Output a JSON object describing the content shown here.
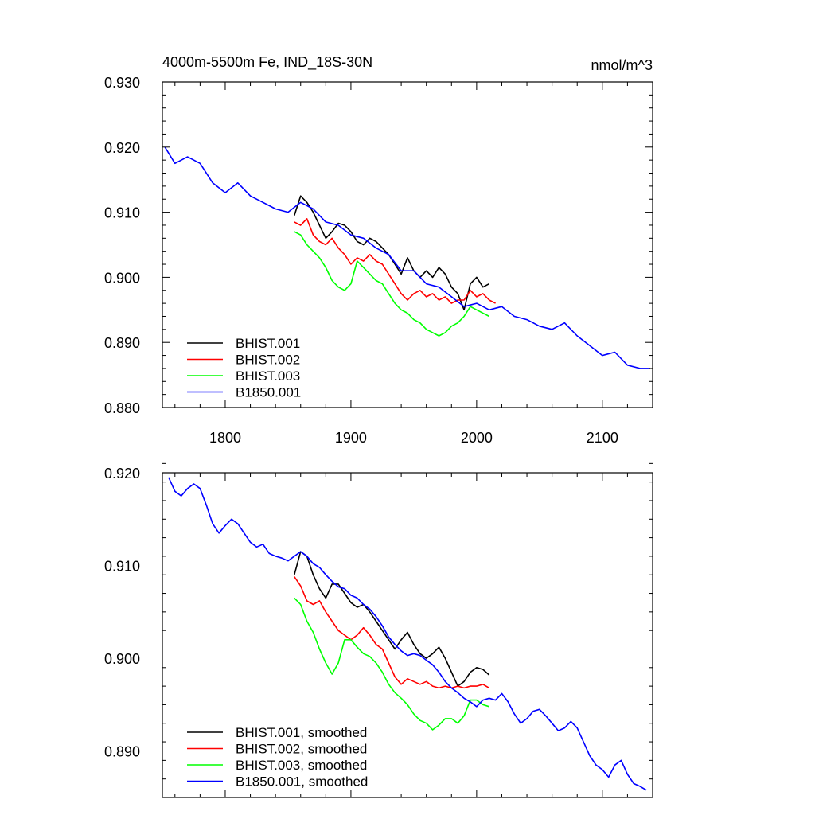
{
  "chart_data": [
    {
      "type": "line",
      "title": "4000m-5500m Fe, IND_18S-30N",
      "units": "nmol/m^3",
      "xlim": [
        1750,
        2140
      ],
      "ylim": [
        0.88,
        0.93
      ],
      "xticks": [
        1800,
        1900,
        2000,
        2100
      ],
      "xtick_labels": [
        "1800",
        "1900",
        "2000",
        "2100"
      ],
      "yticks": [
        0.88,
        0.89,
        0.9,
        0.91,
        0.92,
        0.93
      ],
      "ytick_labels": [
        "0.880",
        "0.890",
        "0.900",
        "0.910",
        "0.920",
        "0.930"
      ],
      "legend_position": "bottom-left",
      "series": [
        {
          "name": "BHIST.001",
          "color": "#000000",
          "x": [
            1855,
            1860,
            1865,
            1870,
            1875,
            1880,
            1885,
            1890,
            1895,
            1900,
            1905,
            1910,
            1915,
            1920,
            1925,
            1930,
            1935,
            1940,
            1945,
            1950,
            1955,
            1960,
            1965,
            1970,
            1975,
            1980,
            1985,
            1990,
            1995,
            2000,
            2005,
            2010
          ],
          "y": [
            0.9095,
            0.9125,
            0.9115,
            0.91,
            0.908,
            0.906,
            0.907,
            0.9083,
            0.908,
            0.907,
            0.9055,
            0.905,
            0.906,
            0.9055,
            0.9045,
            0.9035,
            0.902,
            0.9005,
            0.903,
            0.901,
            0.9,
            0.901,
            0.9,
            0.9015,
            0.9005,
            0.8985,
            0.8975,
            0.895,
            0.899,
            0.9,
            0.8985,
            0.899
          ]
        },
        {
          "name": "BHIST.002",
          "color": "#ff0000",
          "x": [
            1855,
            1860,
            1865,
            1870,
            1875,
            1880,
            1885,
            1890,
            1895,
            1900,
            1905,
            1910,
            1915,
            1920,
            1925,
            1930,
            1935,
            1940,
            1945,
            1950,
            1955,
            1960,
            1965,
            1970,
            1975,
            1980,
            1985,
            1990,
            1995,
            2000,
            2005,
            2010,
            2015
          ],
          "y": [
            0.9085,
            0.908,
            0.909,
            0.9065,
            0.9055,
            0.905,
            0.906,
            0.9045,
            0.9035,
            0.902,
            0.903,
            0.9025,
            0.9035,
            0.9025,
            0.902,
            0.9005,
            0.899,
            0.8975,
            0.8965,
            0.8975,
            0.898,
            0.897,
            0.8975,
            0.8965,
            0.897,
            0.896,
            0.8965,
            0.8965,
            0.898,
            0.897,
            0.8975,
            0.8965,
            0.896
          ]
        },
        {
          "name": "BHIST.003",
          "color": "#00ff00",
          "x": [
            1855,
            1860,
            1865,
            1870,
            1875,
            1880,
            1885,
            1890,
            1895,
            1900,
            1905,
            1910,
            1915,
            1920,
            1925,
            1930,
            1935,
            1940,
            1945,
            1950,
            1955,
            1960,
            1965,
            1970,
            1975,
            1980,
            1985,
            1990,
            1995,
            2000,
            2005,
            2010
          ],
          "y": [
            0.907,
            0.9065,
            0.905,
            0.904,
            0.903,
            0.9015,
            0.8995,
            0.8985,
            0.898,
            0.899,
            0.9025,
            0.9015,
            0.9005,
            0.8995,
            0.899,
            0.8975,
            0.896,
            0.895,
            0.8945,
            0.8935,
            0.893,
            0.892,
            0.8915,
            0.891,
            0.8915,
            0.8925,
            0.893,
            0.894,
            0.8955,
            0.895,
            0.8945,
            0.894
          ]
        },
        {
          "name": "B1850.001",
          "color": "#0000ff",
          "x": [
            1752,
            1760,
            1770,
            1780,
            1790,
            1800,
            1810,
            1820,
            1830,
            1840,
            1850,
            1860,
            1870,
            1880,
            1890,
            1900,
            1910,
            1920,
            1930,
            1940,
            1950,
            1960,
            1970,
            1980,
            1990,
            2000,
            2010,
            2020,
            2030,
            2040,
            2050,
            2060,
            2070,
            2080,
            2090,
            2100,
            2110,
            2120,
            2130,
            2138
          ],
          "y": [
            0.92,
            0.9175,
            0.9185,
            0.9175,
            0.9145,
            0.913,
            0.9145,
            0.9125,
            0.9115,
            0.9105,
            0.91,
            0.9115,
            0.9105,
            0.9085,
            0.908,
            0.9065,
            0.906,
            0.9045,
            0.9035,
            0.901,
            0.901,
            0.899,
            0.8985,
            0.897,
            0.8955,
            0.896,
            0.895,
            0.8955,
            0.894,
            0.8935,
            0.8925,
            0.892,
            0.893,
            0.891,
            0.8895,
            0.888,
            0.8885,
            0.8865,
            0.886,
            0.886
          ]
        }
      ]
    },
    {
      "type": "line",
      "title": "",
      "xlim": [
        1750,
        2140
      ],
      "ylim": [
        0.885,
        0.92
      ],
      "xticks": [
        1800,
        1900,
        2000,
        2100
      ],
      "xtick_labels": [],
      "yticks": [
        0.89,
        0.9,
        0.91,
        0.92
      ],
      "ytick_labels": [
        "0.890",
        "0.900",
        "0.910",
        "0.920"
      ],
      "legend_position": "bottom-left",
      "series": [
        {
          "name": "BHIST.001, smoothed",
          "color": "#000000",
          "x": [
            1855,
            1860,
            1865,
            1870,
            1875,
            1880,
            1885,
            1890,
            1895,
            1900,
            1905,
            1910,
            1915,
            1920,
            1925,
            1930,
            1935,
            1940,
            1945,
            1950,
            1955,
            1960,
            1965,
            1970,
            1975,
            1980,
            1985,
            1990,
            1995,
            2000,
            2005,
            2010
          ],
          "y": [
            0.909,
            0.9115,
            0.911,
            0.909,
            0.9075,
            0.9065,
            0.908,
            0.908,
            0.907,
            0.906,
            0.9055,
            0.9058,
            0.905,
            0.904,
            0.903,
            0.902,
            0.901,
            0.902,
            0.9028,
            0.9015,
            0.9005,
            0.9,
            0.9005,
            0.9012,
            0.9,
            0.8985,
            0.897,
            0.8975,
            0.8985,
            0.899,
            0.8988,
            0.8982
          ]
        },
        {
          "name": "BHIST.002, smoothed",
          "color": "#ff0000",
          "x": [
            1855,
            1860,
            1865,
            1870,
            1875,
            1880,
            1885,
            1890,
            1895,
            1900,
            1905,
            1910,
            1915,
            1920,
            1925,
            1930,
            1935,
            1940,
            1945,
            1950,
            1955,
            1960,
            1965,
            1970,
            1975,
            1980,
            1985,
            1990,
            1995,
            2000,
            2005,
            2010
          ],
          "y": [
            0.9088,
            0.9078,
            0.9062,
            0.9058,
            0.9062,
            0.905,
            0.904,
            0.903,
            0.9025,
            0.902,
            0.9025,
            0.9033,
            0.9025,
            0.9015,
            0.901,
            0.8995,
            0.898,
            0.8972,
            0.8978,
            0.8975,
            0.8972,
            0.8975,
            0.897,
            0.8968,
            0.897,
            0.8968,
            0.897,
            0.8968,
            0.897,
            0.897,
            0.8972,
            0.8968
          ]
        },
        {
          "name": "BHIST.003, smoothed",
          "color": "#00ff00",
          "x": [
            1855,
            1860,
            1865,
            1870,
            1875,
            1880,
            1885,
            1890,
            1895,
            1900,
            1905,
            1910,
            1915,
            1920,
            1925,
            1930,
            1935,
            1940,
            1945,
            1950,
            1955,
            1960,
            1965,
            1970,
            1975,
            1980,
            1985,
            1990,
            1995,
            2000,
            2005,
            2010
          ],
          "y": [
            0.9065,
            0.9058,
            0.904,
            0.9028,
            0.901,
            0.8995,
            0.8983,
            0.8995,
            0.902,
            0.902,
            0.9012,
            0.9005,
            0.9002,
            0.8995,
            0.8985,
            0.8972,
            0.8963,
            0.8957,
            0.895,
            0.894,
            0.8933,
            0.893,
            0.8923,
            0.8928,
            0.8935,
            0.8935,
            0.893,
            0.8938,
            0.8955,
            0.8955,
            0.895,
            0.8948
          ]
        },
        {
          "name": "B1850.001, smoothed",
          "color": "#0000ff",
          "x": [
            1755,
            1760,
            1765,
            1770,
            1775,
            1780,
            1785,
            1790,
            1795,
            1800,
            1805,
            1810,
            1815,
            1820,
            1825,
            1830,
            1835,
            1840,
            1845,
            1850,
            1855,
            1860,
            1865,
            1870,
            1875,
            1880,
            1885,
            1890,
            1895,
            1900,
            1905,
            1910,
            1915,
            1920,
            1925,
            1930,
            1935,
            1940,
            1945,
            1950,
            1955,
            1960,
            1965,
            1970,
            1975,
            1980,
            1985,
            1990,
            1995,
            2000,
            2005,
            2010,
            2015,
            2020,
            2025,
            2030,
            2035,
            2040,
            2045,
            2050,
            2055,
            2060,
            2065,
            2070,
            2075,
            2080,
            2085,
            2090,
            2095,
            2100,
            2105,
            2110,
            2115,
            2120,
            2125,
            2130,
            2135
          ],
          "y": [
            0.9195,
            0.918,
            0.9175,
            0.9183,
            0.9188,
            0.9183,
            0.9165,
            0.9145,
            0.9135,
            0.9143,
            0.915,
            0.9145,
            0.9135,
            0.9125,
            0.912,
            0.9123,
            0.9113,
            0.911,
            0.9108,
            0.9105,
            0.911,
            0.9115,
            0.911,
            0.9102,
            0.9098,
            0.909,
            0.9083,
            0.9077,
            0.9075,
            0.9068,
            0.9065,
            0.9058,
            0.9053,
            0.9045,
            0.9035,
            0.9023,
            0.9015,
            0.9008,
            0.9003,
            0.9005,
            0.9003,
            0.8998,
            0.8993,
            0.8985,
            0.8975,
            0.8968,
            0.8963,
            0.8957,
            0.8953,
            0.8948,
            0.8955,
            0.8957,
            0.8955,
            0.8962,
            0.8953,
            0.894,
            0.893,
            0.8935,
            0.8943,
            0.8945,
            0.8938,
            0.893,
            0.8922,
            0.8925,
            0.8932,
            0.8925,
            0.891,
            0.8895,
            0.8885,
            0.888,
            0.8872,
            0.8885,
            0.889,
            0.8875,
            0.8865,
            0.8862,
            0.8858
          ]
        }
      ]
    }
  ]
}
